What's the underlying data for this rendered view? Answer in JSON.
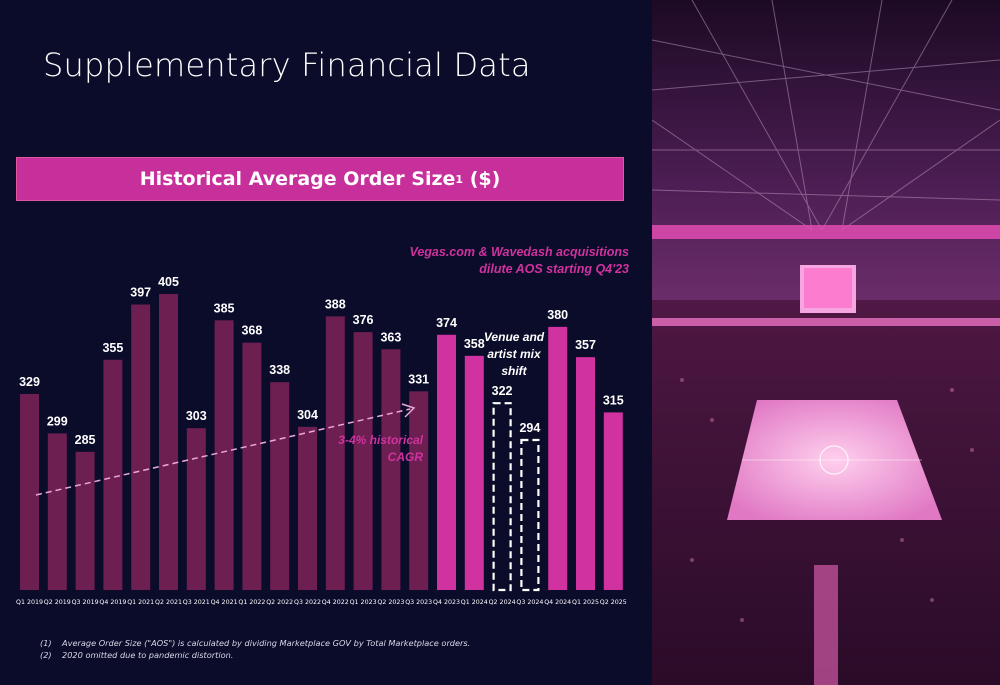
{
  "page_title": "Supplementary Financial Data",
  "banner": {
    "text": "Historical Average Order Size",
    "sup": "1",
    "unit": "($)"
  },
  "chart_data": {
    "type": "bar",
    "title": "Historical Average Order Size ($)",
    "categories": [
      "Q1 2019",
      "Q2 2019",
      "Q3 2019",
      "Q4 2019",
      "Q1 2021",
      "Q2 2021",
      "Q3 2021",
      "Q4 2021",
      "Q1 2022",
      "Q2 2022",
      "Q3 2022",
      "Q4 2022",
      "Q1 2023",
      "Q2 2023",
      "Q3 2023",
      "Q4 2023",
      "Q1 2024",
      "Q2 2024",
      "Q3 2024",
      "Q4 2024",
      "Q1 2025",
      "Q2 2025"
    ],
    "values": [
      329,
      299,
      285,
      355,
      397,
      405,
      303,
      385,
      368,
      338,
      304,
      388,
      376,
      363,
      331,
      374,
      358,
      322,
      294,
      380,
      357,
      315
    ],
    "bar_styles": [
      "dark",
      "dark",
      "dark",
      "dark",
      "dark",
      "dark",
      "dark",
      "dark",
      "dark",
      "dark",
      "dark",
      "dark",
      "dark",
      "dark",
      "dark",
      "bright",
      "bright",
      "dashed",
      "dashed",
      "bright",
      "bright",
      "bright"
    ],
    "colors": {
      "dark": "#6e1f52",
      "bright": "#d0329f",
      "dashed_outline": "#ffffff"
    },
    "ylim": [
      180,
      420
    ],
    "annotations": {
      "cagr": [
        "3-4% historical",
        "CAGR"
      ],
      "acquisitions": [
        "Vegas.com & Wavedash acquisitions",
        "dilute AOS starting Q4'23"
      ],
      "venue": [
        "Venue and",
        "artist mix",
        "shift"
      ]
    }
  },
  "footnotes": [
    {
      "num": "(1)",
      "text": "Average Order Size (\"AOS\") is calculated by dividing Marketplace GOV by Total Marketplace orders."
    },
    {
      "num": "(2)",
      "text": "2020 omitted due to pandemic distortion."
    }
  ],
  "photo": {
    "subject": "arena-photo"
  }
}
